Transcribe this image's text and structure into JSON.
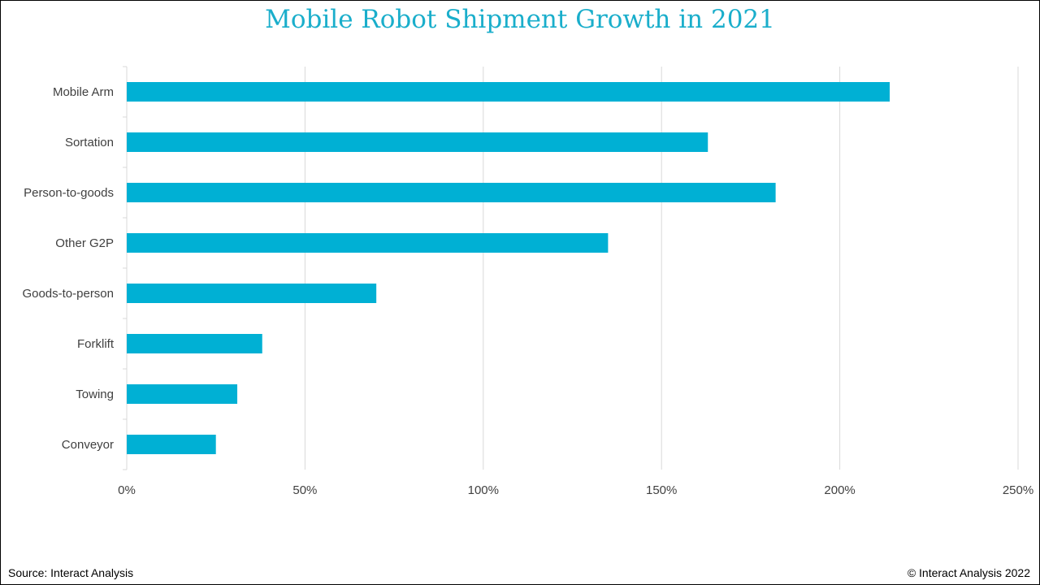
{
  "chart_data": {
    "type": "bar",
    "orientation": "horizontal",
    "title": "Mobile Robot Shipment Growth in 2021",
    "categories": [
      "Mobile Arm",
      "Sortation",
      "Person-to-goods",
      "Other G2P",
      "Goods-to-person",
      "Forklift",
      "Towing",
      "Conveyor"
    ],
    "values": [
      214,
      163,
      182,
      135,
      70,
      38,
      31,
      25
    ],
    "unit": "%",
    "xlim": [
      0,
      250
    ],
    "xticks": [
      "0%",
      "50%",
      "100%",
      "150%",
      "200%",
      "250%"
    ],
    "xtick_values": [
      0,
      50,
      100,
      150,
      200,
      250
    ],
    "grid": true,
    "legend": "none",
    "bar_color": "#00b0d4"
  },
  "footer": {
    "source": "Source: Interact Analysis",
    "copyright": "© Interact Analysis 2022"
  }
}
